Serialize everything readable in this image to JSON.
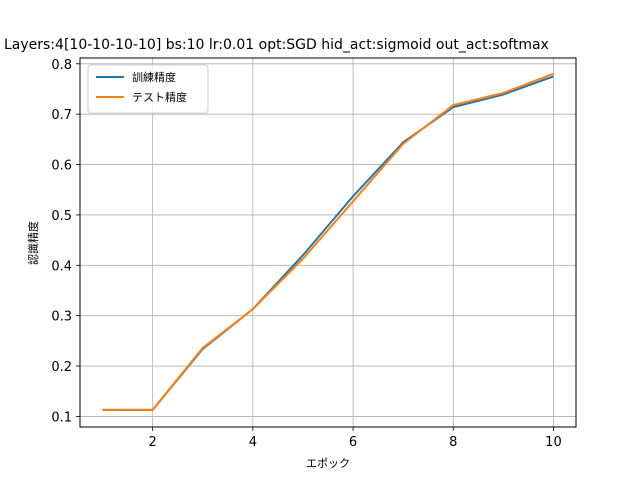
{
  "chart_data": {
    "type": "line",
    "title": "Layers:4[10-10-10-10] bs:10 lr:0.01 opt:SGD hid_act:sigmoid out_act:softmax",
    "xlabel": "エポック",
    "ylabel": "認識精度",
    "xlim": [
      0.55,
      10.45
    ],
    "ylim": [
      0.079,
      0.8115
    ],
    "xticks": [
      2,
      4,
      6,
      8,
      10
    ],
    "yticks": [
      0.1,
      0.2,
      0.3,
      0.4,
      0.5,
      0.6,
      0.7,
      0.8
    ],
    "grid": true,
    "legend_position": "top-left",
    "x": [
      1,
      2,
      3,
      4,
      5,
      6,
      7,
      8,
      9,
      10
    ],
    "series": [
      {
        "name": "訓練精度",
        "color": "#1f77b4",
        "values": [
          0.113,
          0.113,
          0.234,
          0.313,
          0.42,
          0.537,
          0.644,
          0.714,
          0.739,
          0.775
        ]
      },
      {
        "name": "テスト精度",
        "color": "#ff7f0e",
        "values": [
          0.113,
          0.113,
          0.236,
          0.313,
          0.413,
          0.527,
          0.641,
          0.718,
          0.742,
          0.78
        ]
      }
    ]
  }
}
